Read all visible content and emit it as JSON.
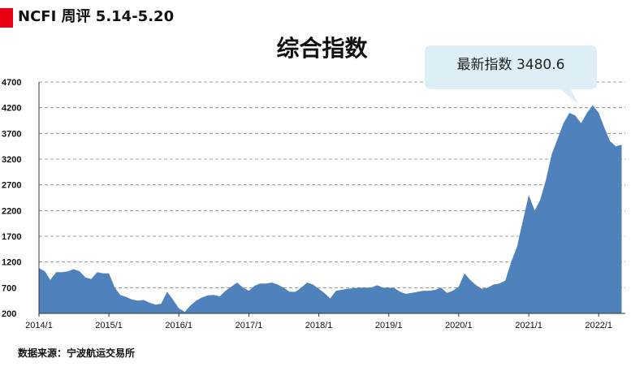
{
  "header": {
    "title": "NCFI 周评 5.14-5.20"
  },
  "colors": {
    "accent_red": "#e60012",
    "area_fill": "#4f81bd",
    "callout_bg": "#ddeef6",
    "grid": "#7f7f7f"
  },
  "chart_data": {
    "type": "area",
    "title": "综合指数",
    "xlabel": "",
    "ylabel": "",
    "ylim": [
      200,
      4700
    ],
    "yticks": [
      200,
      700,
      1200,
      1700,
      2200,
      2700,
      3200,
      3700,
      4200,
      4700
    ],
    "xticks": [
      "2014/1",
      "2015/1",
      "2016/1",
      "2017/1",
      "2018/1",
      "2019/1",
      "2020/1",
      "2021/1",
      "2022/1"
    ],
    "grid": "horizontal dashed",
    "annotation": {
      "text": "最新指数 3480.6",
      "value": 3480.6
    },
    "series": [
      {
        "x": [
          "2014-01-01",
          "2014-02-01",
          "2014-03-01",
          "2014-04-01",
          "2014-05-01",
          "2014-06-01",
          "2014-07-01",
          "2014-08-01",
          "2014-09-01",
          "2014-10-01",
          "2014-11-01",
          "2014-12-01",
          "2015-01-01",
          "2015-02-01",
          "2015-03-01",
          "2015-04-01",
          "2015-05-01",
          "2015-06-01",
          "2015-07-01",
          "2015-08-01",
          "2015-09-01",
          "2015-10-01",
          "2015-11-01",
          "2015-12-01",
          "2016-01-01",
          "2016-02-01",
          "2016-03-01",
          "2016-04-01",
          "2016-05-01",
          "2016-06-01",
          "2016-07-01",
          "2016-08-01",
          "2016-09-01",
          "2016-10-01",
          "2016-11-01",
          "2016-12-01",
          "2017-01-01",
          "2017-02-01",
          "2017-03-01",
          "2017-04-01",
          "2017-05-01",
          "2017-06-01",
          "2017-07-01",
          "2017-08-01",
          "2017-09-01",
          "2017-10-01",
          "2017-11-01",
          "2017-12-01",
          "2018-01-01",
          "2018-02-01",
          "2018-03-01",
          "2018-04-01",
          "2018-05-01",
          "2018-06-01",
          "2018-07-01",
          "2018-08-01",
          "2018-09-01",
          "2018-10-01",
          "2018-11-01",
          "2018-12-01",
          "2019-01-01",
          "2019-02-01",
          "2019-03-01",
          "2019-04-01",
          "2019-05-01",
          "2019-06-01",
          "2019-07-01",
          "2019-08-01",
          "2019-09-01",
          "2019-10-01",
          "2019-11-01",
          "2019-12-01",
          "2020-01-01",
          "2020-02-01",
          "2020-03-01",
          "2020-04-01",
          "2020-05-01",
          "2020-06-01",
          "2020-07-01",
          "2020-08-01",
          "2020-09-01",
          "2020-10-01",
          "2020-11-01",
          "2020-12-01",
          "2021-01-01",
          "2021-02-01",
          "2021-03-01",
          "2021-04-01",
          "2021-05-01",
          "2021-06-01",
          "2021-07-01",
          "2021-08-01",
          "2021-09-01",
          "2021-10-01",
          "2021-11-01",
          "2021-12-01",
          "2022-01-01",
          "2022-02-01",
          "2022-03-01",
          "2022-04-01",
          "2022-05-01"
        ],
        "values": [
          1080,
          1020,
          850,
          1000,
          1000,
          1020,
          1060,
          1020,
          900,
          870,
          1000,
          980,
          980,
          700,
          560,
          520,
          470,
          450,
          460,
          410,
          370,
          390,
          620,
          470,
          300,
          230,
          350,
          450,
          510,
          550,
          560,
          530,
          640,
          720,
          800,
          700,
          640,
          740,
          780,
          780,
          800,
          760,
          700,
          620,
          620,
          700,
          800,
          760,
          680,
          590,
          490,
          640,
          660,
          680,
          690,
          700,
          700,
          700,
          750,
          700,
          700,
          690,
          620,
          580,
          600,
          620,
          640,
          640,
          660,
          700,
          600,
          640,
          720,
          980,
          850,
          750,
          680,
          700,
          760,
          780,
          840,
          1200,
          1500,
          2000,
          2500,
          2200,
          2400,
          2800,
          3300,
          3600,
          3900,
          4100,
          4050,
          3900,
          4100,
          4250,
          4100,
          3800,
          3550,
          3450,
          3480.6
        ]
      }
    ]
  },
  "source": {
    "text": "数据来源：宁波航运交易所"
  }
}
